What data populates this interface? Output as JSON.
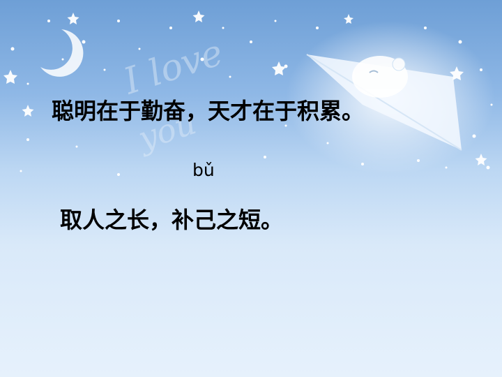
{
  "slide": {
    "line1": "聪明在于勤奋，天才在于积累。",
    "pinyin": "bǔ",
    "line2": "取人之长，补己之短。",
    "decorative_script": "I love you"
  }
}
